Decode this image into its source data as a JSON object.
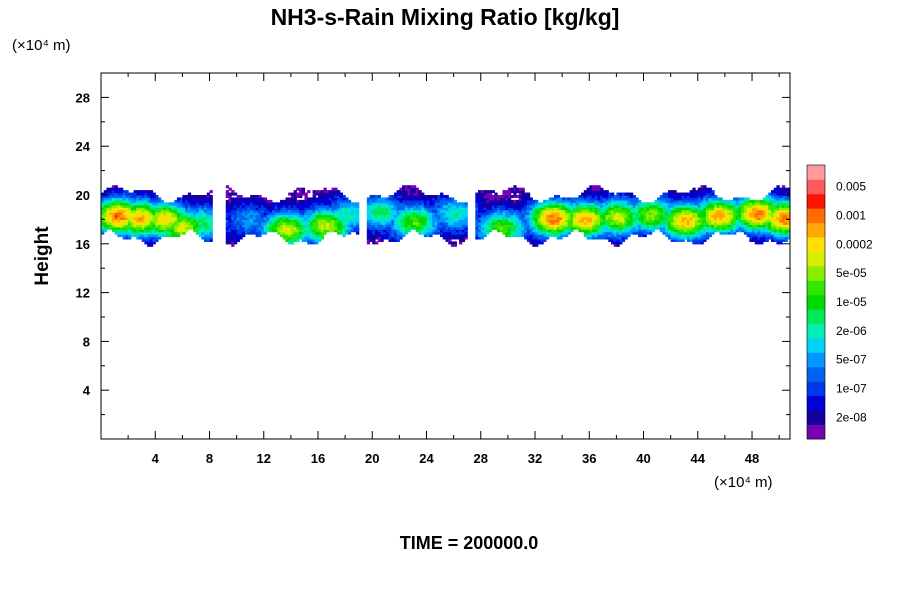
{
  "chart_data": {
    "type": "heatmap",
    "title": "NH3-s-Rain Mixing Ratio [kg/kg]",
    "ylabel": "Height",
    "xlabel": "",
    "x_unit": "(×10⁴ m)",
    "y_unit": "(×10⁴ m)",
    "xlim": [
      0,
      50.8
    ],
    "ylim": [
      0,
      30
    ],
    "x_ticks": [
      4,
      8,
      12,
      16,
      20,
      24,
      28,
      32,
      36,
      40,
      44,
      48
    ],
    "y_ticks": [
      4,
      8,
      12,
      16,
      20,
      24,
      28
    ],
    "x_tick_labels": [
      "4",
      "8",
      "12",
      "16",
      "20",
      "24",
      "28",
      "32",
      "36",
      "40",
      "44",
      "48"
    ],
    "y_tick_labels": [
      "4",
      "8",
      "12",
      "16",
      "20",
      "24",
      "28"
    ],
    "colorbar": {
      "scale": "log",
      "colors": [
        "#7a00b4",
        "#1400a0",
        "#0000d8",
        "#0037e6",
        "#0064f0",
        "#0098ff",
        "#00d2f5",
        "#00f0b0",
        "#00e85a",
        "#00d800",
        "#33e600",
        "#8aee00",
        "#d8f000",
        "#ffe000",
        "#ffa800",
        "#ff6c00",
        "#ff1400",
        "#ff5a5a",
        "#ff9a9a"
      ],
      "labels": [
        "2e-08",
        "1e-07",
        "5e-07",
        "2e-06",
        "1e-05",
        "5e-05",
        "0.0002",
        "0.001",
        "0.005"
      ],
      "label_levels": [
        1,
        3,
        5,
        7,
        9,
        11,
        13,
        15,
        17
      ]
    },
    "cloud_layer": {
      "approx_height_range": [
        16,
        20.5
      ],
      "level_range": [
        0,
        16
      ],
      "cores": [
        {
          "x": 1.2,
          "y": 18.2,
          "level": 15
        },
        {
          "x": 2.8,
          "y": 18.0,
          "level": 14
        },
        {
          "x": 4.6,
          "y": 17.9,
          "level": 13
        },
        {
          "x": 5.9,
          "y": 17.3,
          "level": 12
        },
        {
          "x": 7.4,
          "y": 17.6,
          "level": 8
        },
        {
          "x": 10.8,
          "y": 17.9,
          "level": 5
        },
        {
          "x": 13.6,
          "y": 17.1,
          "level": 12
        },
        {
          "x": 16.5,
          "y": 17.4,
          "level": 12
        },
        {
          "x": 18.2,
          "y": 18.3,
          "level": 7
        },
        {
          "x": 20.5,
          "y": 18.5,
          "level": 8
        },
        {
          "x": 23.0,
          "y": 17.7,
          "level": 10
        },
        {
          "x": 26.0,
          "y": 18.4,
          "level": 7
        },
        {
          "x": 29.5,
          "y": 17.2,
          "level": 10
        },
        {
          "x": 33.3,
          "y": 18.0,
          "level": 15
        },
        {
          "x": 35.6,
          "y": 17.9,
          "level": 14
        },
        {
          "x": 38.0,
          "y": 18.1,
          "level": 12
        },
        {
          "x": 40.5,
          "y": 18.3,
          "level": 11
        },
        {
          "x": 43.0,
          "y": 17.8,
          "level": 14
        },
        {
          "x": 45.5,
          "y": 18.2,
          "level": 14
        },
        {
          "x": 48.3,
          "y": 18.4,
          "level": 15
        },
        {
          "x": 50.3,
          "y": 18.0,
          "level": 15
        }
      ]
    }
  },
  "footer_text": "TIME = 200000.0"
}
